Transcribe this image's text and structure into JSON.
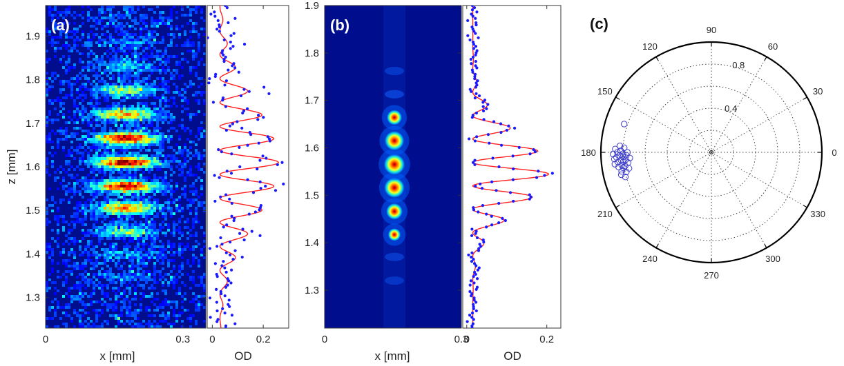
{
  "chart_data": [
    {
      "panel": "(a)",
      "type": "heatmap",
      "xlabel": "x [mm]",
      "ylabel": "z [mm]",
      "xlim": [
        0,
        0.35
      ],
      "ylim": [
        1.97,
        1.23
      ],
      "xticks": [
        {
          "v": 0,
          "t": "0"
        },
        {
          "v": 0.3,
          "t": "0.3"
        }
      ],
      "yticks": [
        1.3,
        1.4,
        1.5,
        1.6,
        1.7,
        1.8,
        1.9
      ],
      "fringe_peaks_z": [
        1.35,
        1.4,
        1.45,
        1.505,
        1.555,
        1.61,
        1.665,
        1.72,
        1.775,
        1.83,
        1.885,
        1.935
      ],
      "fringe_amplitudes": [
        0.12,
        0.22,
        0.42,
        0.72,
        0.92,
        1.0,
        0.95,
        0.68,
        0.45,
        0.25,
        0.14,
        0.07
      ],
      "profile": {
        "xlabel": "OD",
        "xlim": [
          -0.02,
          0.3
        ],
        "xticks": [
          {
            "v": 0,
            "t": "0"
          },
          {
            "v": 0.2,
            "t": "0.2"
          }
        ],
        "fit_color": "#ff2020",
        "data_color": "#1a1aff",
        "offset": 0.03,
        "amplitude": 0.23,
        "envelope_center": 1.61,
        "envelope_width": 0.19,
        "period": 0.055,
        "phase_z": 1.005,
        "noise": 0.035
      }
    },
    {
      "panel": "(b)",
      "type": "heatmap",
      "xlabel": "x [mm]",
      "ylabel": "",
      "xlim": [
        0,
        0.3
      ],
      "ylim": [
        1.9,
        1.22
      ],
      "xticks": [
        {
          "v": 0,
          "t": "0"
        },
        {
          "v": 0.3,
          "t": "0.3"
        }
      ],
      "yticks": [
        1.3,
        1.4,
        1.5,
        1.6,
        1.7,
        1.8,
        1.9
      ],
      "fringe_peaks_z": [
        1.32,
        1.37,
        1.417,
        1.466,
        1.516,
        1.565,
        1.615,
        1.664,
        1.713,
        1.762
      ],
      "fringe_amplitudes": [
        0.05,
        0.1,
        0.32,
        0.62,
        0.92,
        0.98,
        0.86,
        0.52,
        0.2,
        0.08
      ],
      "profile": {
        "xlabel": "OD",
        "xlim": [
          -0.01,
          0.235
        ],
        "xticks": [
          {
            "v": 0,
            "t": "0"
          },
          {
            "v": 0.2,
            "t": "0.2"
          }
        ],
        "fit_color": "#ff2020",
        "data_color": "#1a1aff",
        "offset": 0.015,
        "amplitude": 0.19,
        "envelope_center": 1.55,
        "envelope_width": 0.11,
        "period": 0.0495,
        "phase_z": 1.0,
        "noise": 0.006
      }
    },
    {
      "panel": "(c)",
      "type": "scatter",
      "coord": "polar",
      "rmax": 1.0,
      "rings": [
        0.2,
        0.4,
        0.6,
        0.8
      ],
      "ring_labels": [
        {
          "v": 0.4,
          "t": "0.4"
        },
        {
          "v": 0.8,
          "t": "0.8"
        }
      ],
      "angle_labels": [
        "0",
        "30",
        "60",
        "90",
        "120",
        "150",
        "180",
        "210",
        "240",
        "270",
        "300",
        "330"
      ],
      "marker_color": "#3a3acc",
      "points": [
        {
          "theta": 162,
          "r": 0.83
        },
        {
          "theta": 176,
          "r": 0.83
        },
        {
          "theta": 177,
          "r": 0.79
        },
        {
          "theta": 178,
          "r": 0.87
        },
        {
          "theta": 179,
          "r": 0.82
        },
        {
          "theta": 180,
          "r": 0.85
        },
        {
          "theta": 180,
          "r": 0.76
        },
        {
          "theta": 181,
          "r": 0.8
        },
        {
          "theta": 181,
          "r": 0.89
        },
        {
          "theta": 182,
          "r": 0.83
        },
        {
          "theta": 182,
          "r": 0.77
        },
        {
          "theta": 183,
          "r": 0.86
        },
        {
          "theta": 183,
          "r": 0.8
        },
        {
          "theta": 184,
          "r": 0.74
        },
        {
          "theta": 184,
          "r": 0.88
        },
        {
          "theta": 185,
          "r": 0.82
        },
        {
          "theta": 185,
          "r": 0.78
        },
        {
          "theta": 186,
          "r": 0.85
        },
        {
          "theta": 186,
          "r": 0.8
        },
        {
          "theta": 187,
          "r": 0.76
        },
        {
          "theta": 187,
          "r": 0.88
        },
        {
          "theta": 188,
          "r": 0.82
        },
        {
          "theta": 189,
          "r": 0.79
        },
        {
          "theta": 189,
          "r": 0.85
        },
        {
          "theta": 190,
          "r": 0.81
        },
        {
          "theta": 191,
          "r": 0.76
        },
        {
          "theta": 192,
          "r": 0.83
        },
        {
          "theta": 193,
          "r": 0.79
        },
        {
          "theta": 194,
          "r": 0.84
        },
        {
          "theta": 196,
          "r": 0.81
        }
      ]
    }
  ]
}
